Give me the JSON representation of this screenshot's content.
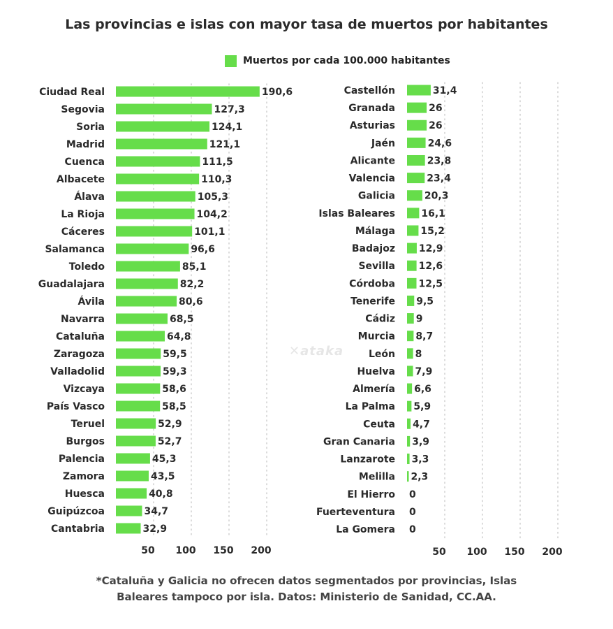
{
  "title": "Las provincias e islas con mayor tasa de muertos por habitantes",
  "legend": {
    "label": "Muertos por cada 100.000 habitantes",
    "color": "#66dd4a"
  },
  "watermark": "xataka",
  "footnote_line1": "*Cataluña y Galicia no ofrecen datos segmentados por provincias, Islas",
  "footnote_line2": "Baleares tampoco por isla. Datos: Ministerio de Sanidad, CC.AA.",
  "chart_data": [
    {
      "type": "bar",
      "orientation": "horizontal",
      "series": [
        {
          "name": "Muertos por cada 100.000 habitantes",
          "color": "#66dd4a"
        }
      ],
      "categories": [
        "Ciudad Real",
        "Segovia",
        "Soria",
        "Madrid",
        "Cuenca",
        "Albacete",
        "Álava",
        "La Rioja",
        "Cáceres",
        "Salamanca",
        "Toledo",
        "Guadalajara",
        "Ávila",
        "Navarra",
        "Cataluña",
        "Zaragoza",
        "Valladolid",
        "Vizcaya",
        "País Vasco",
        "Teruel",
        "Burgos",
        "Palencia",
        "Zamora",
        "Huesca",
        "Guipúzcoa",
        "Cantabria"
      ],
      "values": [
        190.6,
        127.3,
        124.1,
        121.1,
        111.5,
        110.3,
        105.3,
        104.2,
        101.1,
        96.6,
        85.1,
        82.2,
        80.6,
        68.5,
        64.8,
        59.5,
        59.3,
        58.6,
        58.5,
        52.9,
        52.7,
        45.3,
        43.5,
        40.8,
        34.7,
        32.9
      ],
      "value_labels": [
        "190,6",
        "127,3",
        "124,1",
        "121,1",
        "111,5",
        "110,3",
        "105,3",
        "104,2",
        "101,1",
        "96,6",
        "85,1",
        "82,2",
        "80,6",
        "68,5",
        "64,8",
        "59,5",
        "59,3",
        "58,6",
        "58,5",
        "52,9",
        "52,7",
        "45,3",
        "43,5",
        "40,8",
        "34,7",
        "32,9"
      ],
      "xticks": [
        50,
        100,
        150,
        200
      ],
      "xtick_labels": [
        "50",
        "100",
        "150",
        "200"
      ],
      "xlim": [
        0,
        200
      ],
      "grid": "vertical dotted"
    },
    {
      "type": "bar",
      "orientation": "horizontal",
      "series": [
        {
          "name": "Muertos por cada 100.000 habitantes",
          "color": "#66dd4a"
        }
      ],
      "categories": [
        "Castellón",
        "Granada",
        "Asturias",
        "Jaén",
        "Alicante",
        "Valencia",
        "Galicia",
        "Islas Baleares",
        "Málaga",
        "Badajoz",
        "Sevilla",
        "Córdoba",
        "Tenerife",
        "Cádiz",
        "Murcia",
        "León",
        "Huelva",
        "Almería",
        "La Palma",
        "Ceuta",
        "Gran Canaria",
        "Lanzarote",
        "Melilla",
        "El Hierro",
        "Fuerteventura",
        "La Gomera"
      ],
      "values": [
        31.4,
        26,
        26,
        24.6,
        23.8,
        23.4,
        20.3,
        16.1,
        15.2,
        12.9,
        12.6,
        12.5,
        9.5,
        9,
        8.7,
        8,
        7.9,
        6.6,
        5.9,
        4.7,
        3.9,
        3.3,
        2.3,
        0,
        0,
        0
      ],
      "value_labels": [
        "31,4",
        "26",
        "26",
        "24,6",
        "23,8",
        "23,4",
        "20,3",
        "16,1",
        "15,2",
        "12,9",
        "12,6",
        "12,5",
        "9,5",
        "9",
        "8,7",
        "8",
        "7,9",
        "6,6",
        "5,9",
        "4,7",
        "3,9",
        "3,3",
        "2,3",
        "0",
        "0",
        "0"
      ],
      "xticks": [
        50,
        100,
        150,
        200
      ],
      "xtick_labels": [
        "50",
        "100",
        "150",
        "200"
      ],
      "xlim": [
        0,
        200
      ],
      "grid": "vertical dotted"
    }
  ]
}
